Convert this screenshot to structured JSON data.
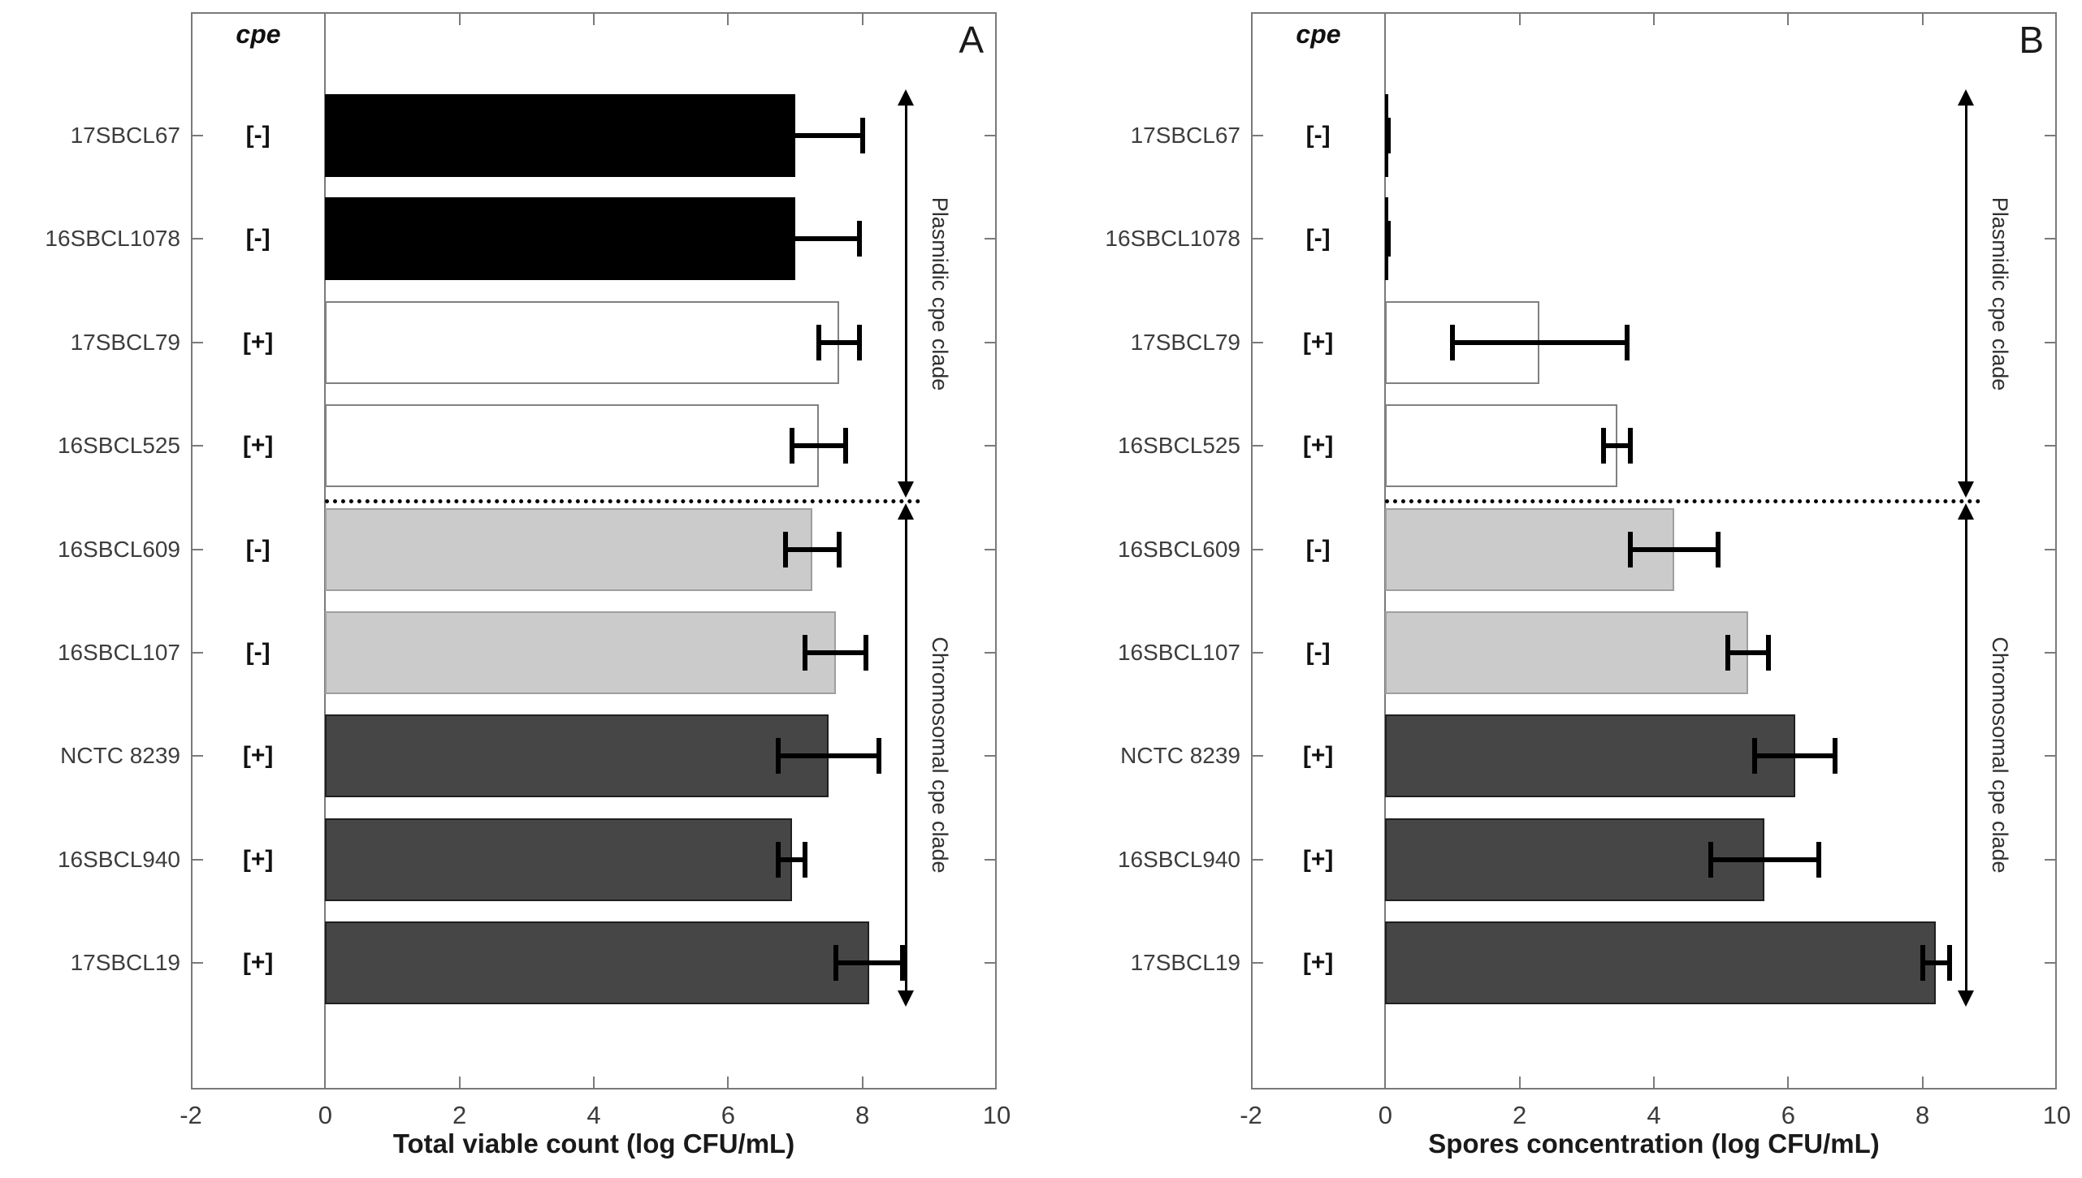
{
  "chart_data": [
    {
      "type": "bar",
      "orientation": "horizontal",
      "panel_letter": "A",
      "title": "",
      "xlabel": "Total viable count (log CFU/mL)",
      "ylabel": "",
      "xlim": [
        -2,
        10
      ],
      "x_ticks": [
        -2,
        0,
        2,
        4,
        6,
        8,
        10
      ],
      "grid": false,
      "legend": false,
      "cpe_header": "cpe",
      "categories": [
        "17SBCL67",
        "16SBCL1078",
        "17SBCL79",
        "16SBCL525",
        "16SBCL609",
        "16SBCL107",
        "NCTC 8239",
        "16SBCL940",
        "17SBCL19"
      ],
      "cpe_status": [
        "[-]",
        "[-]",
        "[+]",
        "[+]",
        "[-]",
        "[-]",
        "[+]",
        "[+]",
        "[+]"
      ],
      "values": [
        7.0,
        7.0,
        7.65,
        7.35,
        7.25,
        7.6,
        7.5,
        6.95,
        8.1
      ],
      "errors": [
        1.0,
        0.95,
        0.3,
        0.4,
        0.4,
        0.45,
        0.75,
        0.2,
        0.5
      ],
      "bar_colors": [
        "#000000",
        "#000000",
        "#ffffff",
        "#ffffff",
        "#cbcbcb",
        "#cbcbcb",
        "#464646",
        "#464646",
        "#464646"
      ],
      "bar_edge_colors": [
        "#000000",
        "#000000",
        "#808080",
        "#808080",
        "#9e9e9e",
        "#9e9e9e",
        "#1f1f1f",
        "#1f1f1f",
        "#1f1f1f"
      ],
      "clade_annotations": [
        {
          "label": "Plasmidic cpe clade",
          "row_start": 0,
          "row_end": 3
        },
        {
          "label": "Chromosomal cpe clade",
          "row_start": 4,
          "row_end": 8
        }
      ]
    },
    {
      "type": "bar",
      "orientation": "horizontal",
      "panel_letter": "B",
      "title": "",
      "xlabel": "Spores concentration (log CFU/mL)",
      "ylabel": "",
      "xlim": [
        -2,
        10
      ],
      "x_ticks": [
        -2,
        0,
        2,
        4,
        6,
        8,
        10
      ],
      "grid": false,
      "legend": false,
      "cpe_header": "cpe",
      "categories": [
        "17SBCL67",
        "16SBCL1078",
        "17SBCL79",
        "16SBCL525",
        "16SBCL609",
        "16SBCL107",
        "NCTC 8239",
        "16SBCL940",
        "17SBCL19"
      ],
      "cpe_status": [
        "[-]",
        "[-]",
        "[+]",
        "[+]",
        "[-]",
        "[-]",
        "[+]",
        "[+]",
        "[+]"
      ],
      "values": [
        0.05,
        0.05,
        2.3,
        3.45,
        4.3,
        5.4,
        6.1,
        5.65,
        8.2
      ],
      "errors": [
        0,
        0,
        1.3,
        0.2,
        0.65,
        0.3,
        0.6,
        0.8,
        0.2
      ],
      "bar_colors": [
        "#000000",
        "#000000",
        "#ffffff",
        "#ffffff",
        "#cbcbcb",
        "#cbcbcb",
        "#464646",
        "#464646",
        "#464646"
      ],
      "bar_edge_colors": [
        "#000000",
        "#000000",
        "#808080",
        "#808080",
        "#9e9e9e",
        "#9e9e9e",
        "#1f1f1f",
        "#1f1f1f",
        "#1f1f1f"
      ],
      "clade_annotations": [
        {
          "label": "Plasmidic cpe clade",
          "row_start": 0,
          "row_end": 3
        },
        {
          "label": "Chromosomal cpe clade",
          "row_start": 4,
          "row_end": 8
        }
      ]
    }
  ],
  "colors": {
    "axis": "#7a7a7a",
    "bar_dark_gray": "#464646",
    "bar_light_gray": "#cbcbcb",
    "bar_black": "#000000",
    "bar_white": "#ffffff",
    "tick_label": "#3b3b3b",
    "annotation": "#000000"
  }
}
